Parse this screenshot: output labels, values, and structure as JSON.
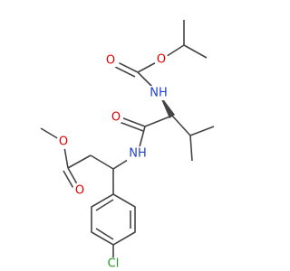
{
  "atoms": [
    "O",
    "O",
    "NH",
    "O",
    "NH",
    "O",
    "O",
    "Cl"
  ]
}
